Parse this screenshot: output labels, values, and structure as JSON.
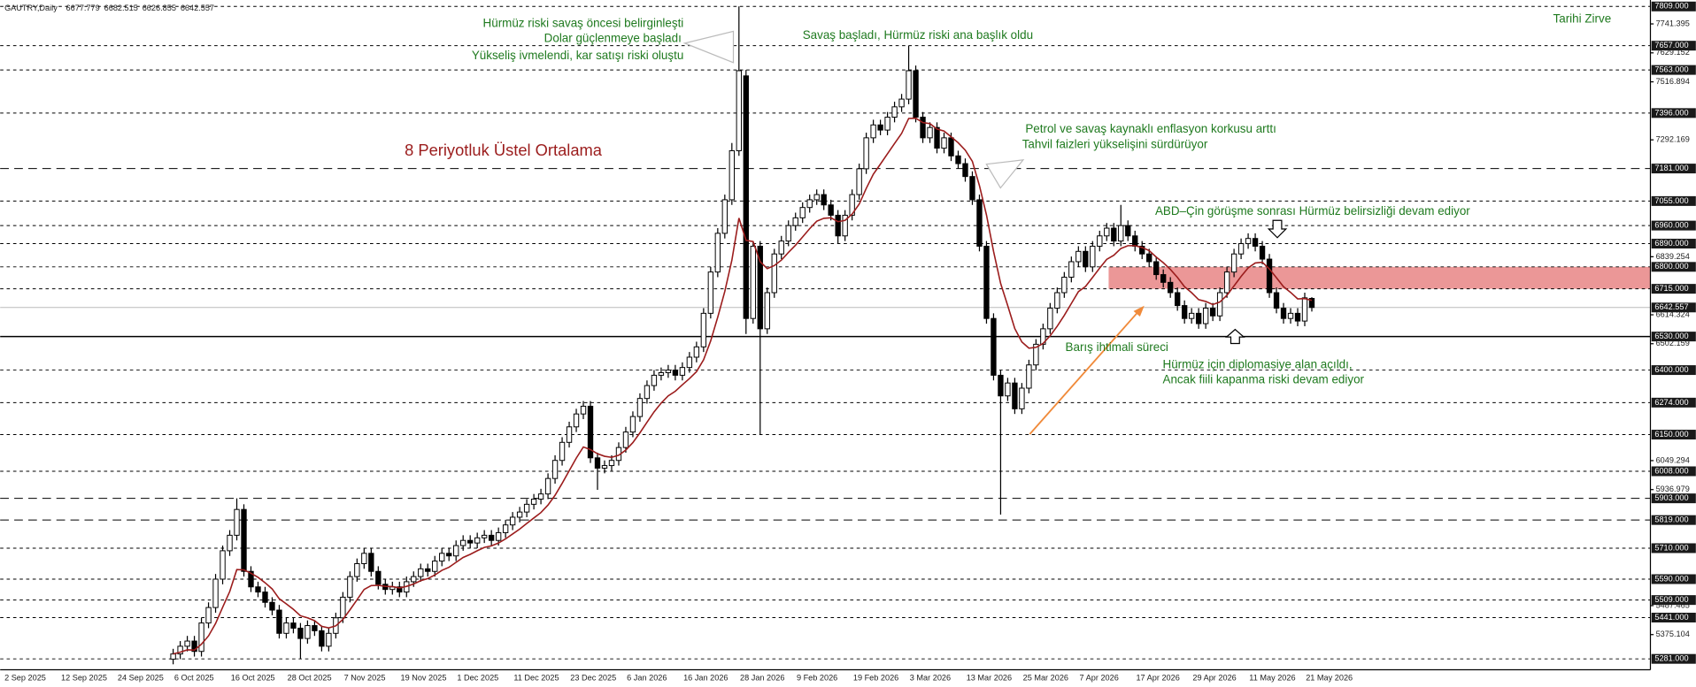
{
  "chart_data": {
    "type": "candlestick",
    "symbol": "GAUTRY,Daily",
    "categories": [
      "2 Sep 2025",
      null,
      null,
      null,
      null,
      null,
      null,
      null,
      "12 Sep 2025",
      null,
      null,
      null,
      null,
      null,
      null,
      null,
      "24 Sep 2025",
      null,
      null,
      null,
      null,
      null,
      null,
      null,
      "6 Oct 2025",
      null,
      null,
      null,
      null,
      null,
      null,
      null,
      "16 Oct 2025",
      null,
      null,
      null,
      null,
      null,
      null,
      null,
      "28 Oct 2025",
      null,
      null,
      null,
      null,
      null,
      null,
      null,
      "7 Nov 2025",
      null,
      null,
      null,
      null,
      null,
      null,
      null,
      "19 Nov 2025",
      null,
      null,
      null,
      null,
      null,
      null,
      null,
      "1 Dec 2025",
      null,
      null,
      null,
      null,
      null,
      null,
      null,
      "11 Dec 2025",
      null,
      null,
      null,
      null,
      null,
      null,
      null,
      "23 Dec 2025",
      null,
      null,
      null,
      null,
      null,
      null,
      null,
      "6 Jan 2026",
      null,
      null,
      null,
      null,
      null,
      null,
      null,
      "16 Jan 2026",
      null,
      null,
      null,
      null,
      null,
      null,
      null,
      "28 Jan 2026",
      null,
      null,
      null,
      null,
      null,
      null,
      null,
      "9 Feb 2026",
      null,
      null,
      null,
      null,
      null,
      null,
      null,
      "19 Feb 2026",
      null,
      null,
      null,
      null,
      null,
      null,
      null,
      "3 Mar 2026",
      null,
      null,
      null,
      null,
      null,
      null,
      null,
      "13 Mar 2026",
      null,
      null,
      null,
      null,
      null,
      null,
      null,
      "25 Mar 2026",
      null,
      null,
      null,
      null,
      null,
      null,
      null,
      "7 Apr 2026",
      null,
      null,
      null,
      null,
      null,
      null,
      null,
      "17 Apr 2026",
      null,
      null,
      null,
      null,
      null,
      null,
      null,
      "29 Apr 2026",
      null,
      null,
      null,
      null,
      null,
      null,
      null,
      "11 May 2026",
      null,
      null,
      null,
      null,
      null,
      null,
      null,
      "21 May 2026",
      null
    ],
    "open": [
      null,
      null,
      null,
      null,
      null,
      null,
      null,
      null,
      null,
      null,
      null,
      null,
      null,
      null,
      null,
      null,
      null,
      null,
      null,
      null,
      null,
      null,
      null,
      null,
      5280,
      5300,
      5330,
      5350,
      5310,
      5420,
      5480,
      5590,
      5700,
      5760,
      5860,
      5620,
      5560,
      5540,
      5500,
      5470,
      5380,
      5420,
      5400,
      5360,
      5410,
      5390,
      5330,
      5380,
      5440,
      5520,
      5600,
      5650,
      5690,
      5620,
      5570,
      5550,
      5560,
      5540,
      5580,
      5600,
      5630,
      5620,
      5660,
      5690,
      5680,
      5720,
      5740,
      5730,
      5750,
      5760,
      5740,
      5770,
      5800,
      5830,
      5850,
      5880,
      5900,
      5920,
      5980,
      6050,
      6120,
      6180,
      6230,
      6260,
      6060,
      6020,
      6030,
      6050,
      6100,
      6160,
      6220,
      6290,
      6340,
      6380,
      6390,
      6400,
      6380,
      6410,
      6450,
      6490,
      6620,
      6780,
      6930,
      7060,
      7250,
      7540,
      6600,
      6880,
      6560,
      6700,
      6850,
      6900,
      6960,
      6990,
      7030,
      7060,
      7080,
      7040,
      7000,
      6920,
      7000,
      7080,
      7180,
      7300,
      7350,
      7330,
      7380,
      7420,
      7450,
      7560,
      7380,
      7300,
      7340,
      7260,
      7300,
      7230,
      7200,
      7150,
      7060,
      6880,
      6600,
      6380,
      6300,
      6350,
      6250,
      6330,
      6420,
      6500,
      6560,
      6640,
      6700,
      6760,
      6820,
      6860,
      6800,
      6880,
      6920,
      6950,
      6900,
      6960,
      6920,
      6880,
      6850,
      6820,
      6770,
      6740,
      6700,
      6650,
      6600,
      6620,
      6580,
      6640,
      6610,
      6700,
      6780,
      6850,
      6890,
      6910,
      6880,
      6830,
      6700,
      6640,
      6600,
      6620,
      6590,
      6677.779
    ],
    "high": [
      null,
      null,
      null,
      null,
      null,
      null,
      null,
      null,
      null,
      null,
      null,
      null,
      null,
      null,
      null,
      null,
      null,
      null,
      null,
      null,
      null,
      null,
      null,
      null,
      5320,
      5350,
      5370,
      5370,
      5440,
      5500,
      5610,
      5720,
      5780,
      5903,
      5880,
      5640,
      5580,
      5560,
      5520,
      5490,
      5440,
      5440,
      5420,
      5430,
      5430,
      5410,
      5400,
      5460,
      5540,
      5620,
      5670,
      5710,
      5710,
      5640,
      5590,
      5580,
      5580,
      5600,
      5620,
      5650,
      5650,
      5680,
      5710,
      5710,
      5740,
      5760,
      5760,
      5770,
      5780,
      5780,
      5790,
      5820,
      5850,
      5870,
      5900,
      5920,
      5940,
      6000,
      6070,
      6140,
      6200,
      6250,
      6280,
      6280,
      6080,
      6050,
      6070,
      6120,
      6180,
      6240,
      6310,
      6360,
      6400,
      6410,
      6420,
      6420,
      6430,
      6470,
      6510,
      6640,
      6800,
      6950,
      7080,
      7280,
      7809,
      7563,
      6900,
      6900,
      6720,
      6870,
      6920,
      6980,
      7010,
      7050,
      7080,
      7100,
      7100,
      7060,
      7020,
      7020,
      7100,
      7200,
      7320,
      7370,
      7370,
      7400,
      7440,
      7470,
      7657,
      7580,
      7400,
      7360,
      7360,
      7320,
      7320,
      7250,
      7220,
      7170,
      7080,
      6900,
      6620,
      6400,
      6370,
      6370,
      6350,
      6440,
      6520,
      6580,
      6660,
      6720,
      6780,
      6840,
      6880,
      6880,
      6900,
      6940,
      6970,
      6970,
      7040,
      6980,
      6940,
      6900,
      6870,
      6840,
      6790,
      6760,
      6720,
      6670,
      6640,
      6640,
      6660,
      6660,
      6720,
      6800,
      6870,
      6910,
      6930,
      6930,
      6900,
      6850,
      6720,
      6660,
      6640,
      6640,
      6700,
      6682.515
    ],
    "low": [
      null,
      null,
      null,
      null,
      null,
      null,
      null,
      null,
      null,
      null,
      null,
      null,
      null,
      null,
      null,
      null,
      null,
      null,
      null,
      null,
      null,
      null,
      null,
      null,
      5260,
      5280,
      5310,
      5290,
      5290,
      5400,
      5460,
      5570,
      5680,
      5740,
      5600,
      5540,
      5520,
      5480,
      5450,
      5360,
      5360,
      5380,
      5281,
      5340,
      5370,
      5310,
      5310,
      5360,
      5420,
      5500,
      5580,
      5630,
      5600,
      5550,
      5530,
      5530,
      5520,
      5520,
      5560,
      5580,
      5600,
      5600,
      5640,
      5660,
      5660,
      5700,
      5710,
      5710,
      5730,
      5720,
      5720,
      5750,
      5780,
      5810,
      5830,
      5860,
      5880,
      5900,
      5960,
      6030,
      6100,
      6160,
      6210,
      6040,
      5936,
      6000,
      6010,
      6030,
      6080,
      6140,
      6200,
      6270,
      6320,
      6360,
      6370,
      6360,
      6360,
      6390,
      6430,
      6470,
      6600,
      6760,
      6910,
      7040,
      7230,
      6540,
      6580,
      6150,
      6540,
      6680,
      6830,
      6880,
      6940,
      6970,
      7010,
      7040,
      7020,
      6980,
      6890,
      6900,
      6980,
      7060,
      7160,
      7280,
      7310,
      7310,
      7360,
      7400,
      7430,
      7360,
      7280,
      7280,
      7240,
      7240,
      7210,
      7180,
      7130,
      7040,
      6860,
      6580,
      6360,
      5840,
      6280,
      6230,
      6230,
      6310,
      6400,
      6480,
      6540,
      6620,
      6680,
      6740,
      6800,
      6780,
      6780,
      6860,
      6900,
      6880,
      6880,
      6900,
      6860,
      6830,
      6800,
      6750,
      6720,
      6680,
      6630,
      6580,
      6580,
      6560,
      6560,
      6590,
      6590,
      6680,
      6760,
      6830,
      6870,
      6860,
      6810,
      6680,
      6620,
      6580,
      6580,
      6570,
      6570,
      6626.855
    ],
    "close": [
      null,
      null,
      null,
      null,
      null,
      null,
      null,
      null,
      null,
      null,
      null,
      null,
      null,
      null,
      null,
      null,
      null,
      null,
      null,
      null,
      null,
      null,
      null,
      null,
      5300,
      5330,
      5350,
      5310,
      5420,
      5480,
      5590,
      5700,
      5760,
      5860,
      5620,
      5560,
      5540,
      5500,
      5470,
      5380,
      5420,
      5400,
      5360,
      5410,
      5390,
      5330,
      5380,
      5440,
      5520,
      5600,
      5650,
      5690,
      5620,
      5570,
      5550,
      5560,
      5540,
      5580,
      5600,
      5630,
      5620,
      5660,
      5690,
      5680,
      5720,
      5740,
      5730,
      5750,
      5760,
      5740,
      5770,
      5800,
      5830,
      5850,
      5880,
      5900,
      5920,
      5980,
      6050,
      6120,
      6180,
      6230,
      6260,
      6060,
      6020,
      6030,
      6050,
      6100,
      6160,
      6220,
      6290,
      6340,
      6380,
      6390,
      6400,
      6380,
      6410,
      6450,
      6490,
      6620,
      6780,
      6930,
      7060,
      7250,
      7560,
      6600,
      6880,
      6560,
      6700,
      6850,
      6900,
      6960,
      6990,
      7030,
      7060,
      7080,
      7040,
      7000,
      6920,
      7000,
      7080,
      7180,
      7300,
      7350,
      7330,
      7380,
      7420,
      7450,
      7560,
      7380,
      7300,
      7340,
      7260,
      7300,
      7230,
      7200,
      7150,
      7060,
      6880,
      6600,
      6380,
      6300,
      6350,
      6250,
      6330,
      6420,
      6500,
      6560,
      6640,
      6700,
      6760,
      6820,
      6860,
      6800,
      6880,
      6920,
      6950,
      6900,
      6960,
      6920,
      6880,
      6850,
      6820,
      6770,
      6740,
      6700,
      6650,
      6600,
      6620,
      6580,
      6640,
      6610,
      6700,
      6780,
      6850,
      6890,
      6910,
      6880,
      6830,
      6700,
      6640,
      6600,
      6620,
      6590,
      6680,
      6642.557
    ],
    "up_color": "#ffffff",
    "down_color": "#000000",
    "ema": {
      "name": "8 Periyotluk Üstel Ortalama",
      "color": "#9b1c1c",
      "values": [
        null,
        null,
        null,
        null,
        null,
        null,
        null,
        null,
        null,
        null,
        null,
        null,
        null,
        null,
        null,
        null,
        null,
        null,
        null,
        null,
        null,
        null,
        null,
        null,
        5300,
        5307,
        5316,
        5315,
        5338,
        5370,
        5418,
        5481,
        5542,
        5627,
        5626,
        5613,
        5597,
        5576,
        5552,
        5514,
        5494,
        5473,
        5448,
        5440,
        5429,
        5407,
        5401,
        5409,
        5434,
        5471,
        5510,
        5550,
        5565,
        5566,
        5562,
        5561,
        5556,
        5562,
        5571,
        5584,
        5592,
        5606,
        5624,
        5636,
        5655,
        5674,
        5686,
        5700,
        5713,
        5719,
        5730,
        5746,
        5765,
        5784,
        5806,
        5827,
        5848,
        5877,
        5915,
        5961,
        6010,
        6059,
        6102,
        6092,
        6076,
        6066,
        6062,
        6070,
        6090,
        6119,
        6157,
        6198,
        6238,
        6272,
        6300,
        6318,
        6343,
        6367,
        6394,
        6440,
        6513,
        6605,
        6705,
        6826,
        6989,
        6903,
        6898,
        6820,
        6793,
        6805,
        6826,
        6856,
        6884,
        6916,
        6948,
        6977,
        6988,
        6990,
        6975,
        6980,
        7004,
        7043,
        7104,
        7159,
        7198,
        7238,
        7278,
        7317,
        7375,
        7376,
        7359,
        7355,
        7334,
        7326,
        7304,
        7281,
        7252,
        7209,
        7115,
        7001,
        6860,
        6736,
        6650,
        6561,
        6509,
        6485,
        6488,
        6503,
        6533,
        6570,
        6612,
        6658,
        6704,
        6724,
        6759,
        6795,
        6829,
        6845,
        6871,
        6882,
        6882,
        6875,
        6863,
        6838,
        6816,
        6790,
        6759,
        6723,
        6700,
        6673,
        6666,
        6654,
        6664,
        6690,
        6726,
        6763,
        6796,
        6815,
        6818,
        6792,
        6758,
        6723,
        6701,
        6676,
        6677,
        6670
      ]
    },
    "ylim": [
      5239,
      7834
    ],
    "yticks": [
      {
        "value": 7741.395,
        "label": "7741.395"
      },
      {
        "value": 7629.152,
        "label": "7629.152"
      },
      {
        "value": 7516.894,
        "label": "7516.894"
      },
      {
        "value": 7292.169,
        "label": "7292.169"
      },
      {
        "value": 6839.254,
        "label": "6839.254"
      },
      {
        "value": 6614.324,
        "label": "6614.324"
      },
      {
        "value": 6502.159,
        "label": "6502.159"
      },
      {
        "value": 6049.294,
        "label": "6049.294"
      },
      {
        "value": 5936.979,
        "label": "5936.979"
      },
      {
        "value": 5487.465,
        "label": "5487.465"
      },
      {
        "value": 5375.104,
        "label": "5375.104"
      }
    ],
    "levels": [
      {
        "value": 7809,
        "label": "7809.000",
        "line": "dotted"
      },
      {
        "value": 7657,
        "label": "7657.000",
        "line": "dotted"
      },
      {
        "value": 7563,
        "label": "7563.000",
        "line": "dotted"
      },
      {
        "value": 7396,
        "label": "7396.000",
        "line": "dotted"
      },
      {
        "value": 7181,
        "label": "7181.000",
        "line": "dashed"
      },
      {
        "value": 7055,
        "label": "7055.000",
        "line": "dotted"
      },
      {
        "value": 6960,
        "label": "6960.000",
        "line": "dotted"
      },
      {
        "value": 6890,
        "label": "6890.000",
        "line": "dotted"
      },
      {
        "value": 6800,
        "label": "6800.000",
        "line": "dotted"
      },
      {
        "value": 6715,
        "label": "6715.000",
        "line": "dotted"
      },
      {
        "value": 6530,
        "label": "6530.000",
        "line": "solid"
      },
      {
        "value": 6400,
        "label": "6400.000",
        "line": "dotted"
      },
      {
        "value": 6274,
        "label": "6274.000",
        "line": "dotted"
      },
      {
        "value": 6150,
        "label": "6150.000",
        "line": "dotted"
      },
      {
        "value": 6008,
        "label": "6008.000",
        "line": "dotted"
      },
      {
        "value": 5903,
        "label": "5903.000",
        "line": "dashed"
      },
      {
        "value": 5819,
        "label": "5819.000",
        "line": "dashed"
      },
      {
        "value": 5710,
        "label": "5710.000",
        "line": "dotted"
      },
      {
        "value": 5590,
        "label": "5590.000",
        "line": "dotted"
      },
      {
        "value": 5509,
        "label": "5509.000",
        "line": "dotted"
      },
      {
        "value": 5441,
        "label": "5441.000",
        "line": "dotted"
      },
      {
        "value": 5281,
        "label": "5281.000",
        "line": "dotted"
      }
    ],
    "zone_color": "#e88585",
    "annotation_color": "#1f7a1f",
    "annotations": [
      "Hürmüz riski savaş öncesi belirginleşti",
      "Dolar güçlenmeye başladı",
      "Yükseliş ivmelendi, kar satışı riski oluştu",
      "Savaş başladı, Hürmüz riski ana başlık oldu",
      "Petrol ve savaş kaynaklı enflasyon korkusu arttı",
      "Tahvil faizleri yükselişini sürdürüyor",
      "ABD–Çin görüşme sonrası Hürmüz belirsizliği devam ediyor",
      "Barış ihtimali süreci",
      "Hürmüz için diplomasiye alan açıldı,",
      "Ancak fiili kapanma riski devam ediyor",
      "Tarihi Zirve"
    ]
  }
}
